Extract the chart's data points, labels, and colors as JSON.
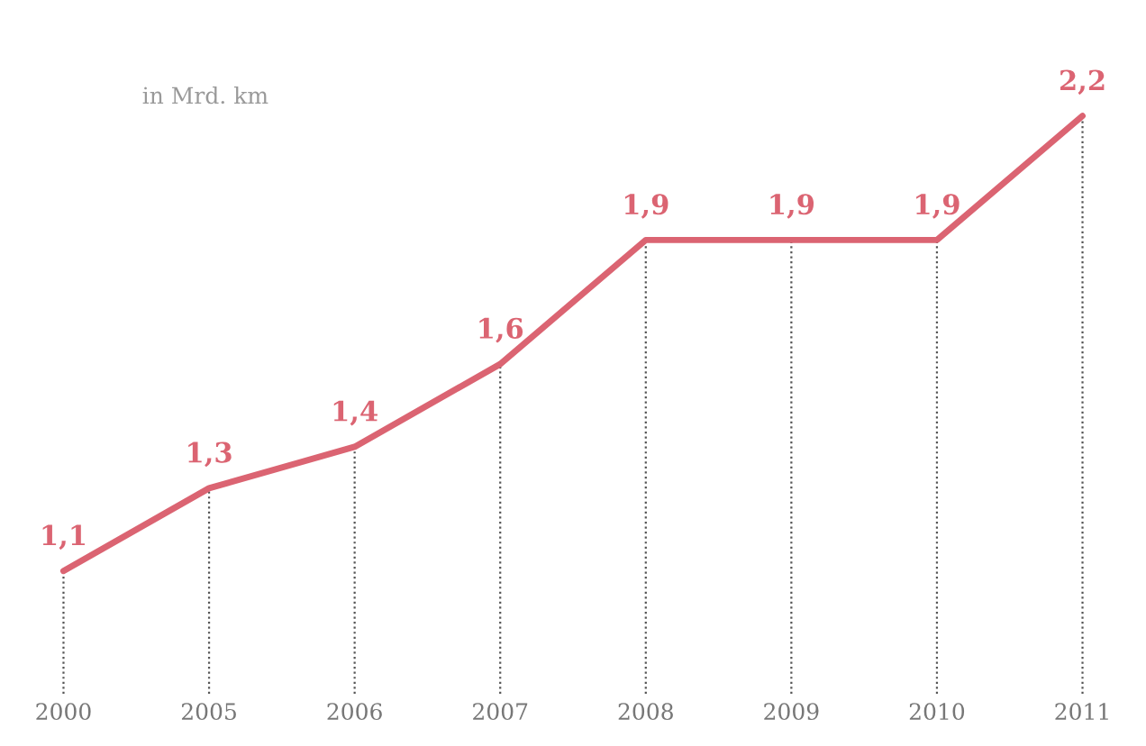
{
  "chart_data": {
    "type": "line",
    "categories": [
      "2000",
      "2005",
      "2006",
      "2007",
      "2008",
      "2009",
      "2010",
      "2011"
    ],
    "series": [
      {
        "color": "#db6472",
        "values": [
          1.1,
          1.3,
          1.4,
          1.6,
          1.9,
          1.9,
          1.9,
          2.2
        ],
        "value_labels": [
          "1,1",
          "1,3",
          "1,4",
          "1,6",
          "1,9",
          "1,9",
          "1,9",
          "2,2"
        ]
      }
    ],
    "annotations": [
      "in Mrd. km"
    ],
    "tick_labels": "x",
    "grid": "x",
    "legend": false,
    "marker": "none",
    "line_style": "solid"
  }
}
